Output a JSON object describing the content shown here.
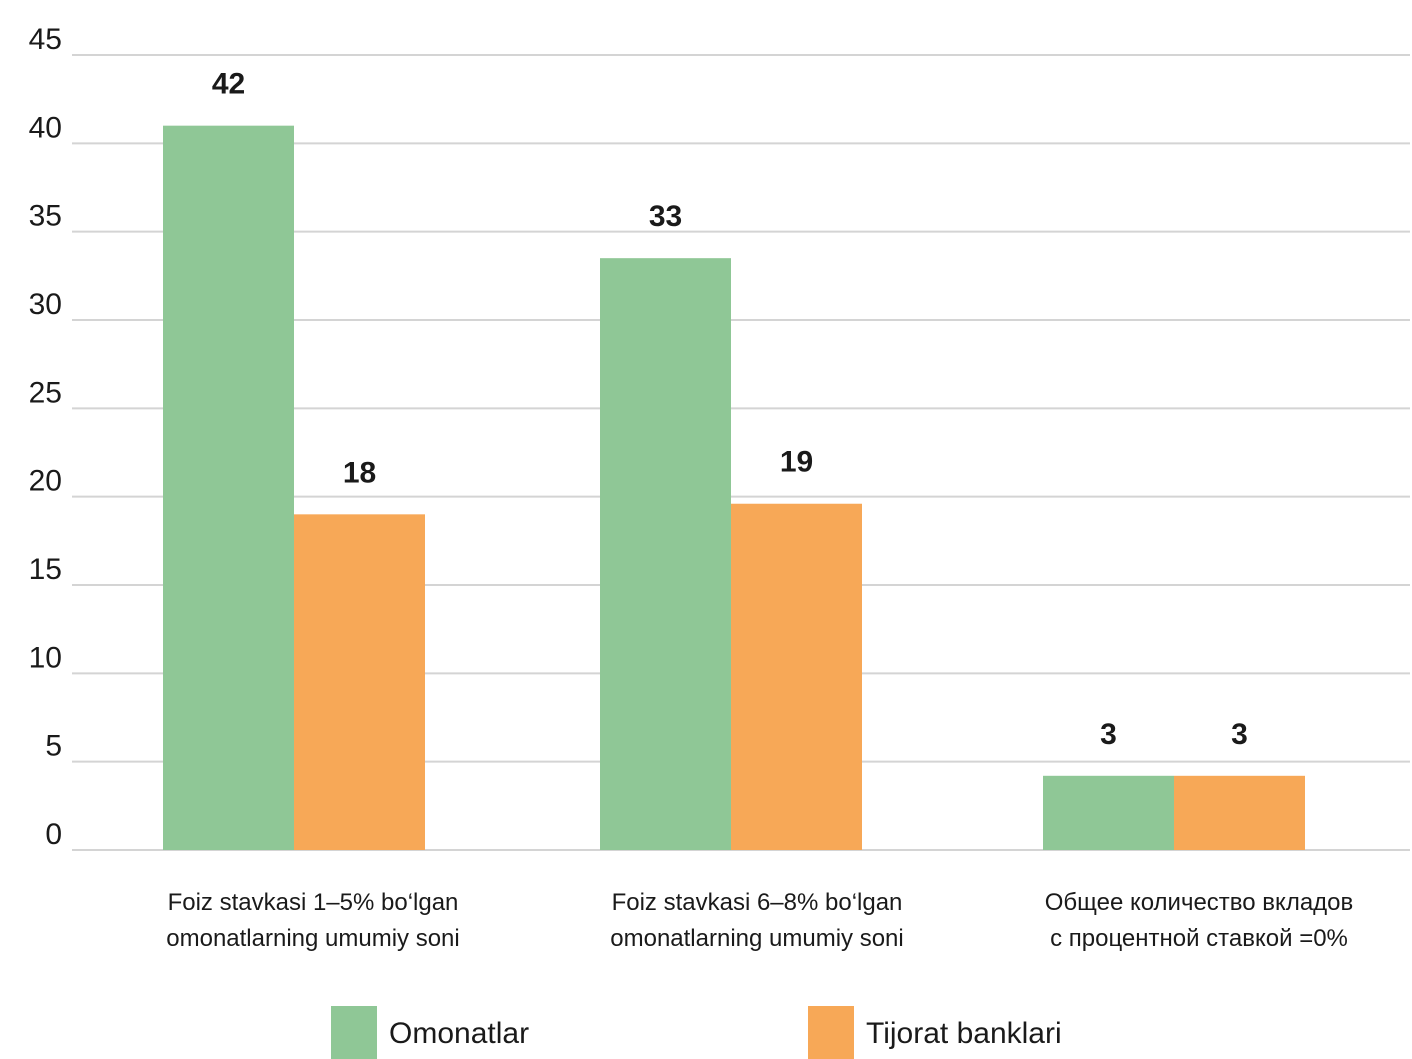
{
  "chart_data": {
    "type": "bar",
    "categories": [
      [
        "Foiz stavkasi 1–5% bo‘lgan",
        "omonatlarning umumiy soni"
      ],
      [
        "Foiz stavkasi 6–8% bo‘lgan",
        "omonatlarning umumiy soni"
      ],
      [
        "Общее количество вкладов",
        "с процентной ставкой =0%"
      ]
    ],
    "series": [
      {
        "name": "Omonatlar",
        "color": "#8fc796",
        "values": [
          42,
          33,
          3
        ],
        "bar_heights": [
          41,
          33.5,
          4.2
        ]
      },
      {
        "name": "Tijorat banklari",
        "color": "#f7a857",
        "values": [
          18,
          19,
          3
        ],
        "bar_heights": [
          19,
          19.6,
          4.2
        ]
      }
    ],
    "y_ticks": [
      "0",
      "5",
      "10",
      "15",
      "20",
      "25",
      "30",
      "35",
      "40",
      "45"
    ],
    "title": "",
    "xlabel": "",
    "ylabel": "",
    "ylim": [
      0,
      45
    ],
    "grid": true,
    "legend_position": "bottom-center"
  }
}
